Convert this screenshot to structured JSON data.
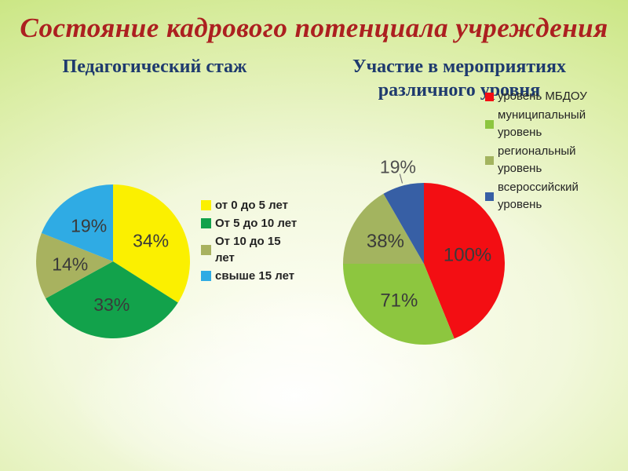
{
  "slide": {
    "title": "Состояние кадрового потенциала учреждения",
    "left_chart_title": "Педагогический стаж",
    "right_chart_title": "Участие в мероприятиях различного уровня",
    "colors": {
      "title": "#AC2020",
      "subtitle": "#1E3A6E",
      "background_edge": "#BFE16C",
      "background_center": "#FDFEF4",
      "data_label": "#3A3A3A"
    }
  },
  "chart_data": [
    {
      "type": "pie",
      "title": "Педагогический стаж",
      "categories": [
        "от 0 до 5 лет",
        "От 5 до 10 лет",
        "От 10 до 15 лет",
        "свыше 15 лет"
      ],
      "values": [
        34,
        33,
        14,
        19
      ],
      "labels": [
        "34%",
        "33%",
        "14%",
        "19%"
      ],
      "colors": [
        "#FBF000",
        "#12A24B",
        "#A8B25F",
        "#2FABE4"
      ],
      "legend_lines": [
        [
          "от 0 до 5 лет"
        ],
        [
          "От 5 до 10 лет"
        ],
        [
          "От 10 до 15",
          "лет"
        ],
        [
          "свыше 15 лет"
        ]
      ],
      "start_angle": 0,
      "direction": "clockwise",
      "legend_position": "right",
      "layout": {
        "size": 220,
        "radius": 98,
        "label_radius_frac": 0.56,
        "label_size": 23,
        "label_color": "#3A3A3A"
      }
    },
    {
      "type": "pie",
      "title": "Участие в мероприятиях различного уровня",
      "categories": [
        "уровень МБДОУ",
        "муниципальный уровень",
        "региональный уровень",
        "всероссийский уровень"
      ],
      "values": [
        100,
        71,
        38,
        19
      ],
      "labels": [
        "100%",
        "71%",
        "38%",
        "19%"
      ],
      "colors": [
        "#F30E13",
        "#8DC63F",
        "#A3B45F",
        "#375FA5"
      ],
      "legend_lines": [
        [
          "уровень МБДОУ"
        ],
        [
          "муниципальный",
          "уровень"
        ],
        [
          "региональный",
          "уровень"
        ],
        [
          "всероссийский",
          "уровень"
        ]
      ],
      "start_angle": 0,
      "direction": "clockwise",
      "legend_position": "right",
      "outside_label_index": 3,
      "layout": {
        "size": 280,
        "radius": 103,
        "label_radius_frac": 0.55,
        "label_size": 24,
        "label_color": "#3A3A3A",
        "outside_label_size": 23,
        "outside_label_color": "#4F4F4F",
        "outside_label_radius_frac": 1.24,
        "leader_color": "#777777"
      }
    }
  ]
}
